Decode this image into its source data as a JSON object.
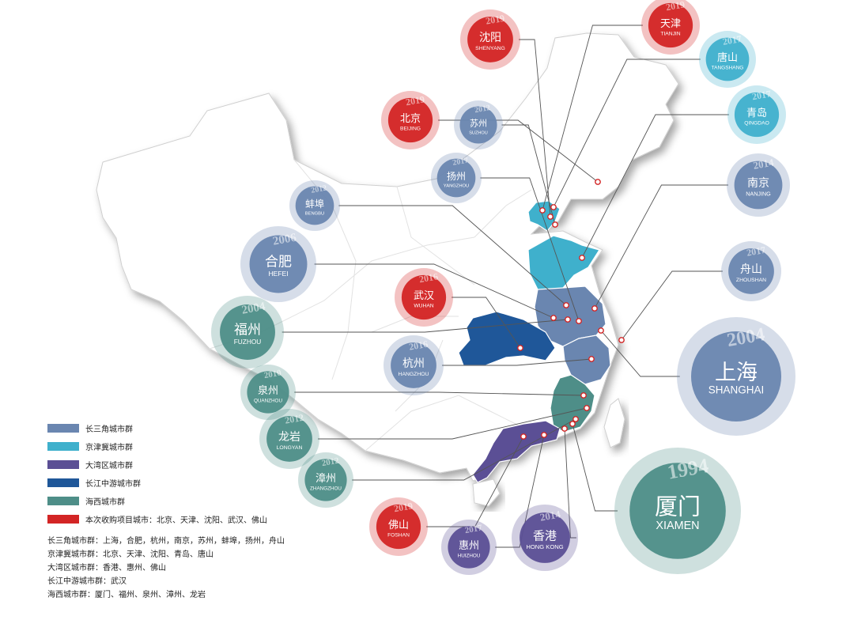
{
  "legend": {
    "items": [
      {
        "label": "长三角城市群",
        "color": "#6a86b0"
      },
      {
        "label": "京津冀城市群",
        "color": "#3fb0cc"
      },
      {
        "label": "大湾区城市群",
        "color": "#5b4f95"
      },
      {
        "label": "长江中游城市群",
        "color": "#1f5799"
      },
      {
        "label": "海西城市群",
        "color": "#4e8e88"
      },
      {
        "label": "本次收购项目城市：北京、天津、沈阳、武汉、佛山",
        "color": "#d32525"
      }
    ],
    "notes": [
      "长三角城市群：上海，合肥，杭州，南京，苏州，蚌埠，扬州，舟山",
      "京津冀城市群：北京、天津、沈阳、青岛、唐山",
      "大湾区城市群：香港、惠州、佛山",
      "长江中游城市群：武汉",
      "海西城市群：厦门、福州、泉州、漳州、龙岩"
    ]
  },
  "cities": [
    {
      "zh": "沈阳",
      "en": "SHENYANG",
      "year": "2019",
      "group": "acq"
    },
    {
      "zh": "天津",
      "en": "TIANJIN",
      "year": "2019",
      "group": "acq"
    },
    {
      "zh": "唐山",
      "en": "TANGSHANG",
      "year": "2017",
      "group": "jjj"
    },
    {
      "zh": "北京",
      "en": "BEIJING",
      "year": "2019",
      "group": "acq"
    },
    {
      "zh": "苏州",
      "en": "SUZHOU",
      "year": "2012",
      "group": "csj"
    },
    {
      "zh": "青岛",
      "en": "QINGDAO",
      "year": "2017",
      "group": "jjj"
    },
    {
      "zh": "扬州",
      "en": "YANGZHOU",
      "year": "2017",
      "group": "csj"
    },
    {
      "zh": "南京",
      "en": "NANJING",
      "year": "2014",
      "group": "csj"
    },
    {
      "zh": "蚌埠",
      "en": "BENGBU",
      "year": "2012",
      "group": "csj"
    },
    {
      "zh": "合肥",
      "en": "HEFEI",
      "year": "2006",
      "group": "csj"
    },
    {
      "zh": "舟山",
      "en": "ZHOUSHAN",
      "year": "2017",
      "group": "csj"
    },
    {
      "zh": "武汉",
      "en": "WUHAN",
      "year": "2016",
      "group": "acq"
    },
    {
      "zh": "福州",
      "en": "FUZHOU",
      "year": "2004",
      "group": "hx"
    },
    {
      "zh": "杭州",
      "en": "HANGZHOU",
      "year": "2016",
      "group": "csj"
    },
    {
      "zh": "上海",
      "en": "SHANGHAI",
      "year": "2004",
      "group": "csj"
    },
    {
      "zh": "泉州",
      "en": "QUANZHOU",
      "year": "2010",
      "group": "hx"
    },
    {
      "zh": "龙岩",
      "en": "LONGYAN",
      "year": "2012",
      "group": "hx"
    },
    {
      "zh": "漳州",
      "en": "ZHANGZHOU",
      "year": "2012",
      "group": "hx"
    },
    {
      "zh": "厦门",
      "en": "XIAMEN",
      "year": "1994",
      "group": "hx"
    },
    {
      "zh": "佛山",
      "en": "FOSHAN",
      "year": "2019",
      "group": "acq"
    },
    {
      "zh": "惠州",
      "en": "HUIZHOU",
      "year": "2017",
      "group": "dwq"
    },
    {
      "zh": "香港",
      "en": "HONG KONG",
      "year": "2014",
      "group": "dwq"
    }
  ],
  "group_colors": {
    "csj": "#6a86b0",
    "jjj": "#3fb0cc",
    "dwq": "#5b4f95",
    "cjzy": "#1f5799",
    "hx": "#4e8e88",
    "acq": "#d32525"
  }
}
